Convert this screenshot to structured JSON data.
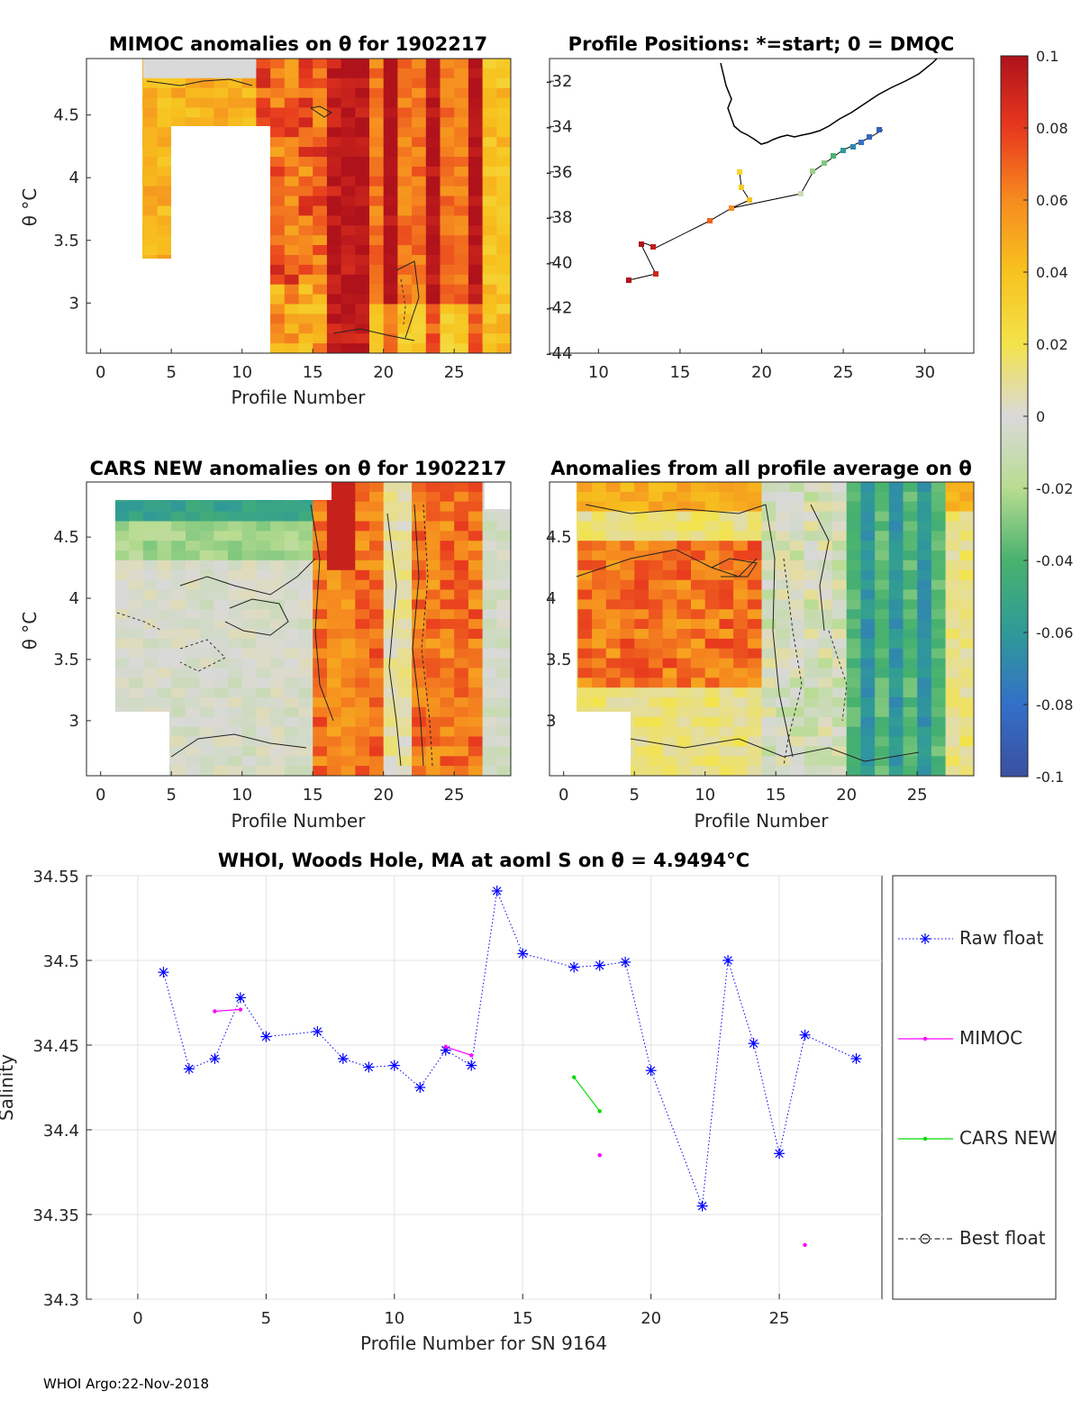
{
  "figure": {
    "footer": "WHOI Argo:22-Nov-2018",
    "colorbar": {
      "ticks": [
        "0.1",
        "0.08",
        "0.06",
        "0.04",
        "0.02",
        "0",
        "-0.02",
        "-0.04",
        "-0.06",
        "-0.08",
        "-0.1"
      ],
      "vmin": -0.1,
      "vmax": 0.1
    }
  },
  "panels": {
    "mimoc": {
      "title": "MIMOC anomalies on θ  for 1902217",
      "xlabel": "Profile Number",
      "ylabel": "θ °C",
      "xticks": [
        "0",
        "5",
        "10",
        "15",
        "20",
        "25"
      ],
      "yticks": [
        "4.5",
        "4",
        "3.5",
        "3"
      ]
    },
    "map": {
      "title": "Profile Positions: *=start; 0 = DMQC",
      "xticks": [
        "10",
        "15",
        "20",
        "25",
        "30"
      ],
      "yticks": [
        "-32",
        "-34",
        "-36",
        "-38",
        "-40",
        "-42",
        "-44"
      ]
    },
    "cars": {
      "title": "CARS NEW anomalies on θ for 1902217",
      "xlabel": "Profile Number",
      "ylabel": "θ °C",
      "xticks": [
        "0",
        "5",
        "10",
        "15",
        "20",
        "25"
      ],
      "yticks": [
        "4.5",
        "4",
        "3.5",
        "3"
      ]
    },
    "avg": {
      "title": "Anomalies from all profile average on θ",
      "xlabel": "Profile Number",
      "xticks": [
        "0",
        "5",
        "10",
        "15",
        "20",
        "25"
      ],
      "yticks": [
        "4.5",
        "4",
        "3.5",
        "3"
      ]
    }
  },
  "chart_data": {
    "type": "line",
    "title": "WHOI, Woods Hole, MA at aoml S on θ = 4.9494°C",
    "xlabel": "Profile Number for SN 9164",
    "ylabel": "Salinity",
    "xlim": [
      -2,
      29
    ],
    "ylim": [
      34.3,
      34.55
    ],
    "xticks": [
      "0",
      "5",
      "10",
      "15",
      "20",
      "25"
    ],
    "yticks": [
      "34.55",
      "34.5",
      "34.45",
      "34.4",
      "34.35",
      "34.3"
    ],
    "series": [
      {
        "name": "Raw float",
        "color": "#0000ff",
        "x": [
          1,
          2,
          3,
          4,
          5,
          7,
          8,
          9,
          10,
          11,
          12,
          13,
          14,
          15,
          17,
          18,
          19,
          20,
          22,
          23,
          24,
          25,
          26,
          28
        ],
        "y": [
          34.493,
          34.436,
          34.442,
          34.478,
          34.455,
          34.458,
          34.442,
          34.437,
          34.438,
          34.425,
          34.447,
          34.438,
          34.541,
          34.504,
          34.496,
          34.497,
          34.499,
          34.435,
          34.355,
          34.5,
          34.451,
          34.386,
          34.456,
          34.442
        ]
      },
      {
        "name": "MIMOC",
        "color": "#ff00ff",
        "segments": [
          {
            "x": [
              3,
              4
            ],
            "y": [
              34.47,
              34.471
            ]
          },
          {
            "x": [
              12,
              13
            ],
            "y": [
              34.449,
              34.444
            ]
          },
          {
            "x": [
              18
            ],
            "y": [
              34.385
            ]
          },
          {
            "x": [
              26
            ],
            "y": [
              34.332
            ]
          }
        ]
      },
      {
        "name": "CARS NEW",
        "color": "#00dd00",
        "segments": [
          {
            "x": [
              17,
              18
            ],
            "y": [
              34.431,
              34.411
            ]
          }
        ]
      },
      {
        "name": "Best float",
        "color": "#000000",
        "x": [],
        "y": []
      }
    ]
  }
}
